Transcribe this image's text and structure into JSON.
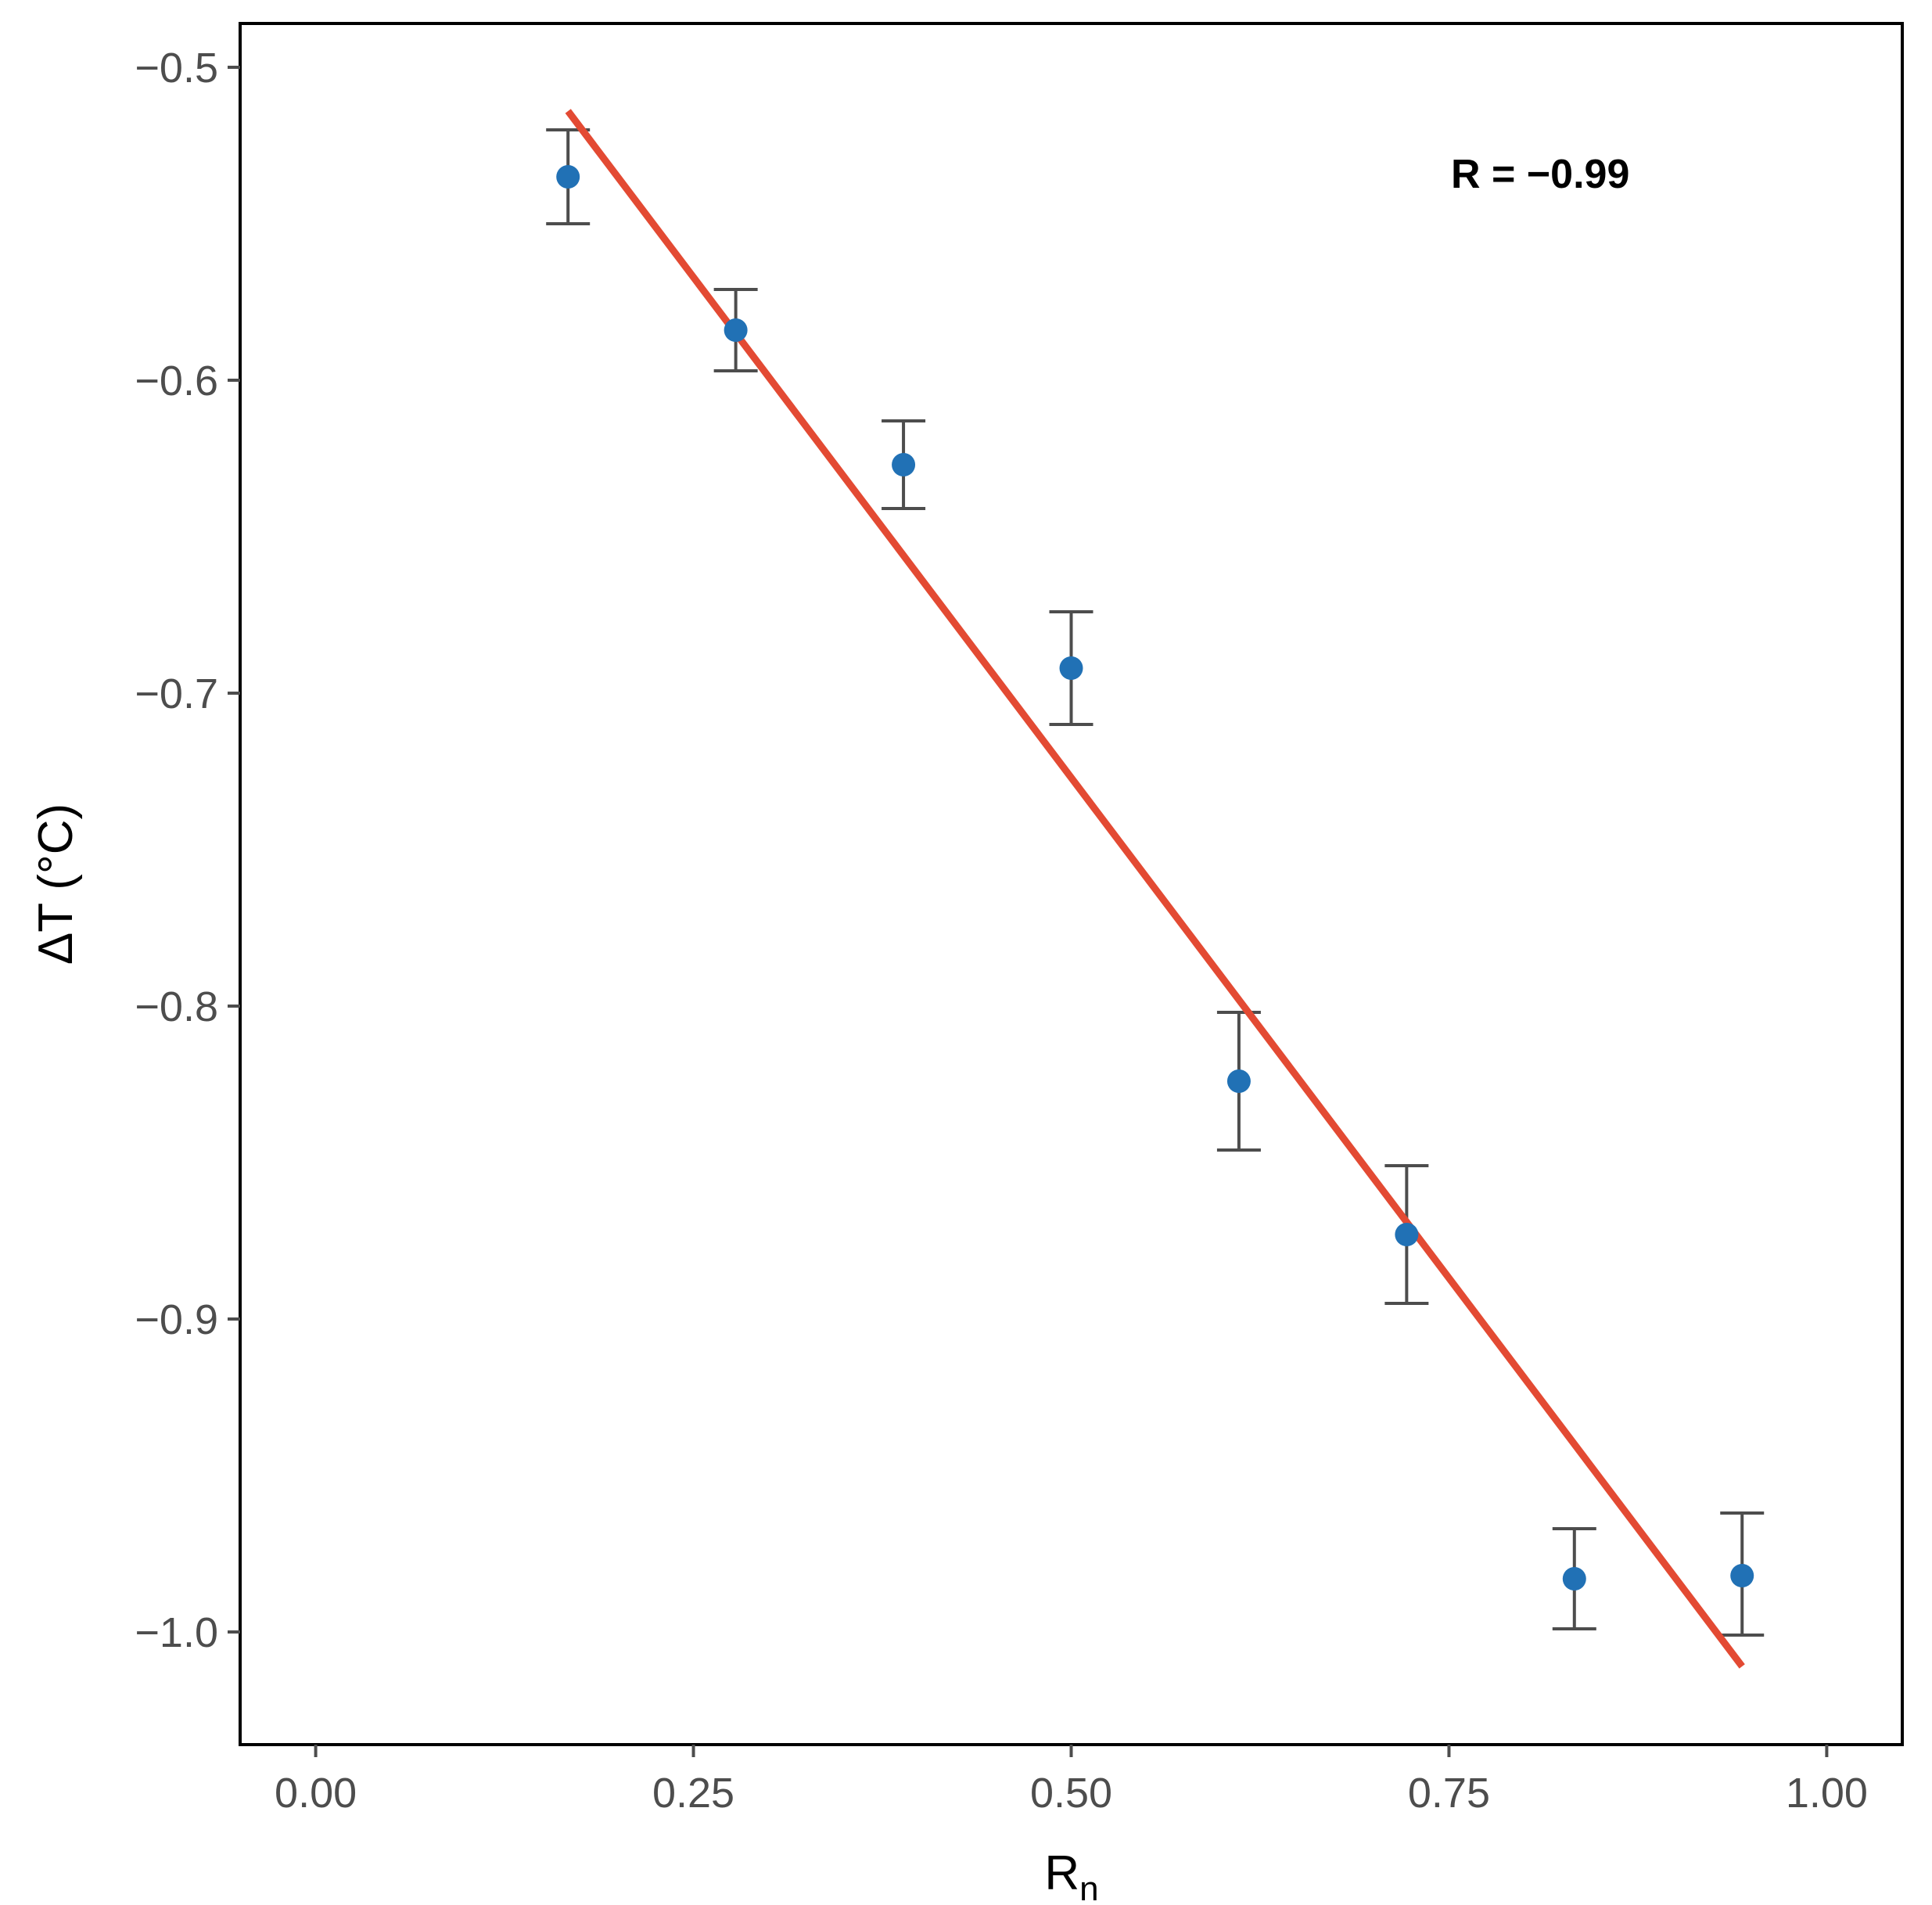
{
  "chart_data": {
    "type": "scatter",
    "xlabel": "R",
    "xlabel_subscript": "n",
    "ylabel": "ΔT (°C)",
    "xlim": [
      -0.05,
      1.05
    ],
    "ylim": [
      -1.036,
      -0.486
    ],
    "x_ticks": [
      0.0,
      0.25,
      0.5,
      0.75,
      1.0
    ],
    "x_tick_labels": [
      "0.00",
      "0.25",
      "0.50",
      "0.75",
      "1.00"
    ],
    "y_ticks": [
      -0.5,
      -0.6,
      -0.7,
      -0.8,
      -0.9,
      -1.0
    ],
    "y_tick_labels": [
      "−0.5",
      "−0.6",
      "−0.7",
      "−0.8",
      "−0.9",
      "−1.0"
    ],
    "grid": false,
    "points": [
      {
        "x": 0.167,
        "y": -0.535,
        "ymin": -0.55,
        "ymax": -0.52
      },
      {
        "x": 0.278,
        "y": -0.584,
        "ymin": -0.597,
        "ymax": -0.571
      },
      {
        "x": 0.389,
        "y": -0.627,
        "ymin": -0.641,
        "ymax": -0.613
      },
      {
        "x": 0.5,
        "y": -0.692,
        "ymin": -0.71,
        "ymax": -0.674
      },
      {
        "x": 0.611,
        "y": -0.824,
        "ymin": -0.846,
        "ymax": -0.802
      },
      {
        "x": 0.722,
        "y": -0.873,
        "ymin": -0.895,
        "ymax": -0.851
      },
      {
        "x": 0.833,
        "y": -0.983,
        "ymin": -0.999,
        "ymax": -0.967
      },
      {
        "x": 0.944,
        "y": -0.982,
        "ymin": -1.001,
        "ymax": -0.962
      }
    ],
    "fit_line": {
      "x": [
        0.167,
        0.944
      ],
      "y": [
        -0.514,
        -1.011
      ]
    },
    "annotation": "R = −0.99",
    "colors": {
      "points": "#2171b5",
      "error_bars": "#4d4d4d",
      "fit_line": "#e34a33",
      "axis": "#000000"
    }
  }
}
